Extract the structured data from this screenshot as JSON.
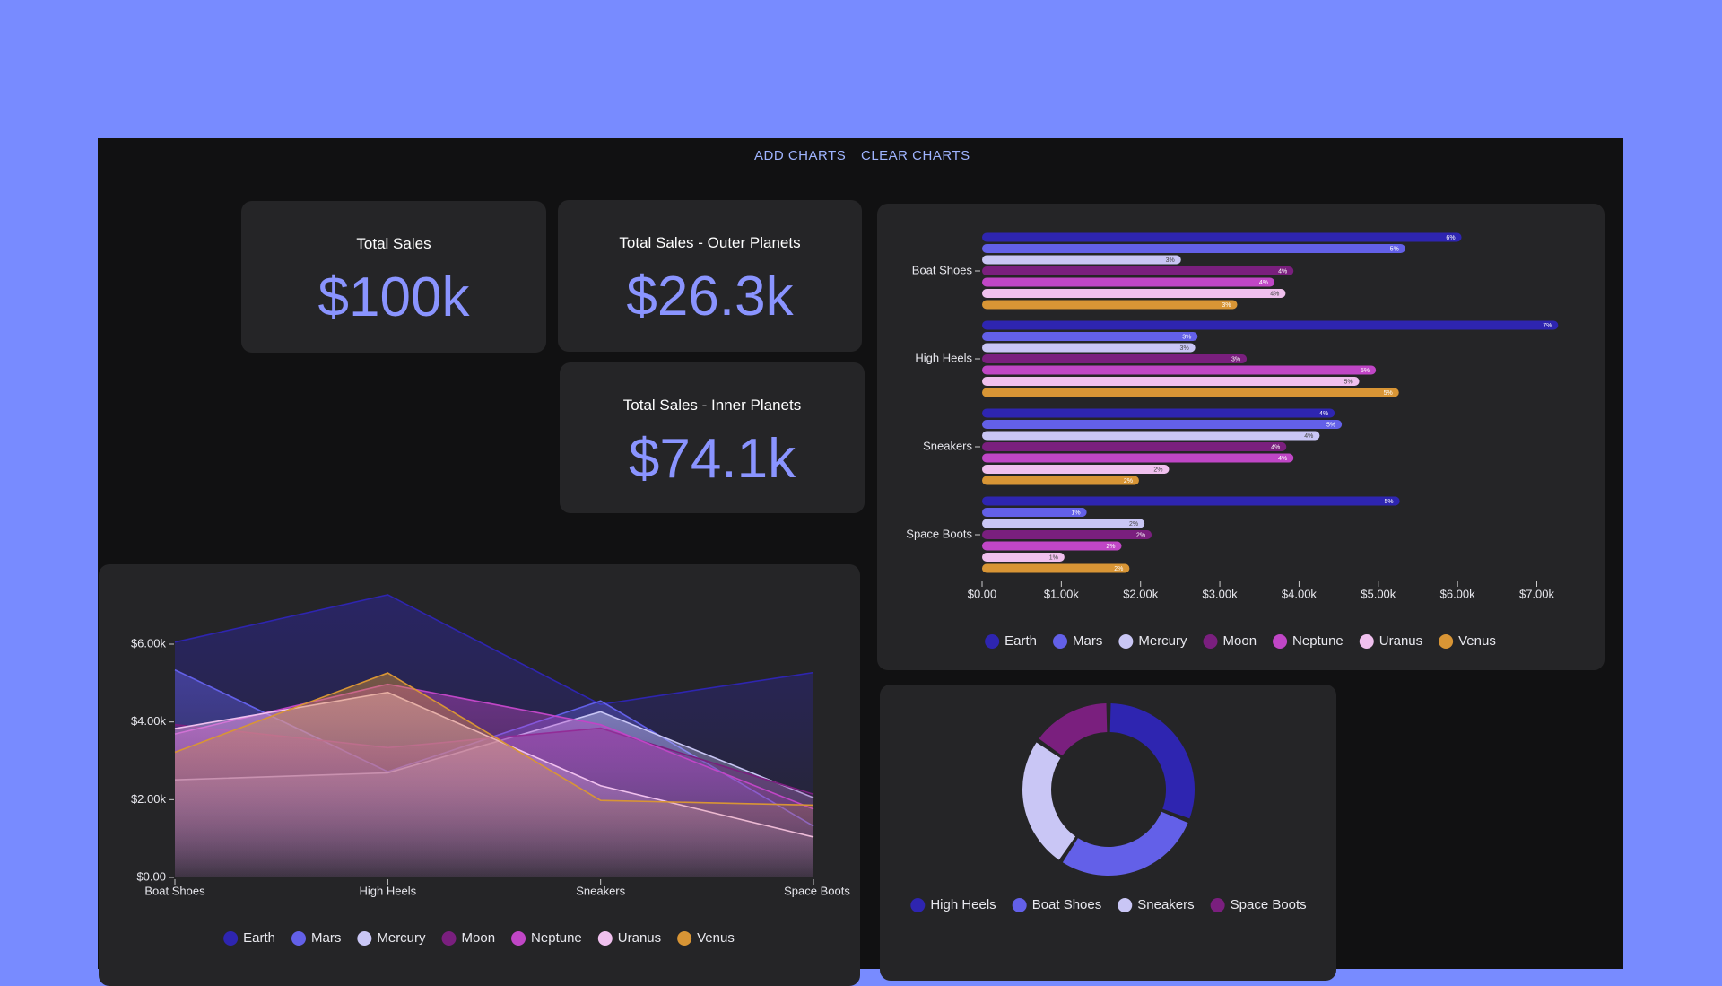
{
  "toolbar": {
    "buttons": [
      "ADD CHARTS",
      "CLEAR CHARTS"
    ]
  },
  "kpis": [
    {
      "title": "Total Sales",
      "value": "$100k"
    },
    {
      "title": "Total Sales - Outer Planets",
      "value": "$26.3k"
    },
    {
      "title": "Total Sales - Inner Planets",
      "value": "$74.1k"
    }
  ],
  "chart_data": [
    {
      "type": "bar",
      "categories": [
        "Boat Shoes",
        "High Heels",
        "Sneakers",
        "Space Boots"
      ],
      "xlim": [
        0,
        7300
      ],
      "xticks": [
        {
          "value": 0,
          "label": "$0.00"
        },
        {
          "value": 1000,
          "label": "$1.00k"
        },
        {
          "value": 2000,
          "label": "$2.00k"
        },
        {
          "value": 3000,
          "label": "$3.00k"
        },
        {
          "value": 4000,
          "label": "$4.00k"
        },
        {
          "value": 5000,
          "label": "$5.00k"
        },
        {
          "value": 6000,
          "label": "$6.00k"
        },
        {
          "value": 7000,
          "label": "$7.00k"
        }
      ],
      "series": [
        {
          "name": "Earth",
          "color": "#2e25b0",
          "values": [
            6050,
            7270,
            4450,
            5270
          ],
          "value_labels": [
            "6%",
            "7%",
            "4%",
            "5%"
          ]
        },
        {
          "name": "Mars",
          "color": "#6360e8",
          "values": [
            5340,
            2720,
            4540,
            1320
          ],
          "value_labels": [
            "5%",
            "3%",
            "5%",
            "1%"
          ]
        },
        {
          "name": "Mercury",
          "color": "#c9c6f5",
          "values": [
            2510,
            2690,
            4260,
            2050
          ],
          "value_labels": [
            "3%",
            "3%",
            "4%",
            "2%"
          ]
        },
        {
          "name": "Moon",
          "color": "#7a1f7e",
          "values": [
            3930,
            3340,
            3840,
            2140
          ],
          "value_labels": [
            "4%",
            "3%",
            "4%",
            "2%"
          ]
        },
        {
          "name": "Neptune",
          "color": "#c046c6",
          "values": [
            3690,
            4970,
            3930,
            1760
          ],
          "value_labels": [
            "4%",
            "5%",
            "4%",
            "2%"
          ]
        },
        {
          "name": "Uranus",
          "color": "#f0c0ee",
          "values": [
            3830,
            4760,
            2360,
            1040
          ],
          "value_labels": [
            "4%",
            "5%",
            "2%",
            "1%"
          ]
        },
        {
          "name": "Venus",
          "color": "#d89535",
          "values": [
            3220,
            5260,
            1980,
            1860
          ],
          "value_labels": [
            "3%",
            "5%",
            "2%",
            "2%"
          ]
        }
      ]
    },
    {
      "type": "area",
      "categories": [
        "Boat Shoes",
        "High Heels",
        "Sneakers",
        "Space Boots"
      ],
      "ylim": [
        0,
        7500
      ],
      "yticks": [
        {
          "value": 0,
          "label": "$0.00"
        },
        {
          "value": 2000,
          "label": "$2.00k"
        },
        {
          "value": 4000,
          "label": "$4.00k"
        },
        {
          "value": 6000,
          "label": "$6.00k"
        }
      ],
      "series": [
        {
          "name": "Earth",
          "color": "#2e25b0",
          "values": [
            6050,
            7270,
            4450,
            5270
          ]
        },
        {
          "name": "Mars",
          "color": "#6360e8",
          "values": [
            5340,
            2720,
            4540,
            1320
          ]
        },
        {
          "name": "Mercury",
          "color": "#c9c6f5",
          "values": [
            2510,
            2690,
            4260,
            2050
          ]
        },
        {
          "name": "Moon",
          "color": "#7a1f7e",
          "values": [
            3930,
            3340,
            3840,
            2140
          ]
        },
        {
          "name": "Neptune",
          "color": "#c046c6",
          "values": [
            3690,
            4970,
            3930,
            1760
          ]
        },
        {
          "name": "Uranus",
          "color": "#f0c0ee",
          "values": [
            3830,
            4760,
            2360,
            1040
          ]
        },
        {
          "name": "Venus",
          "color": "#d89535",
          "values": [
            3220,
            5260,
            1980,
            1860
          ]
        }
      ]
    },
    {
      "type": "donut",
      "categories": [
        "High Heels",
        "Boat Shoes",
        "Sneakers",
        "Space Boots"
      ],
      "values": [
        31010,
        28570,
        25360,
        15440
      ],
      "colors": [
        "#2e25b0",
        "#6360e8",
        "#c9c6f5",
        "#7a1f7e"
      ]
    }
  ]
}
